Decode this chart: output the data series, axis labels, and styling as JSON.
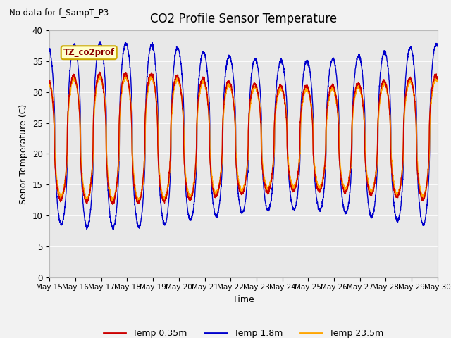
{
  "title": "CO2 Profile Sensor Temperature",
  "subtitle": "No data for f_SampT_P3",
  "xlabel": "Time",
  "ylabel": "Senor Temperature (C)",
  "legend_label": "TZ_co2prof",
  "ylim": [
    0,
    40
  ],
  "yticks": [
    0,
    5,
    10,
    15,
    20,
    25,
    30,
    35,
    40
  ],
  "xtick_labels": [
    "May 15",
    "May 16",
    "May 17",
    "May 18",
    "May 19",
    "May 20",
    "May 21",
    "May 22",
    "May 23",
    "May 24",
    "May 25",
    "May 26",
    "May 27",
    "May 28",
    "May 29",
    "May 30"
  ],
  "bg_color": "#e8e8e8",
  "fig_bg_color": "#f2f2f2",
  "grid_color": "#ffffff",
  "line_colors": {
    "temp035": "#cc0000",
    "temp18": "#0000cc",
    "temp235": "#ffa500"
  },
  "legend_series": [
    {
      "label": "Temp 0.35m",
      "color": "#cc0000"
    },
    {
      "label": "Temp 1.8m",
      "color": "#0000cc"
    },
    {
      "label": "Temp 23.5m",
      "color": "#ffa500"
    }
  ]
}
